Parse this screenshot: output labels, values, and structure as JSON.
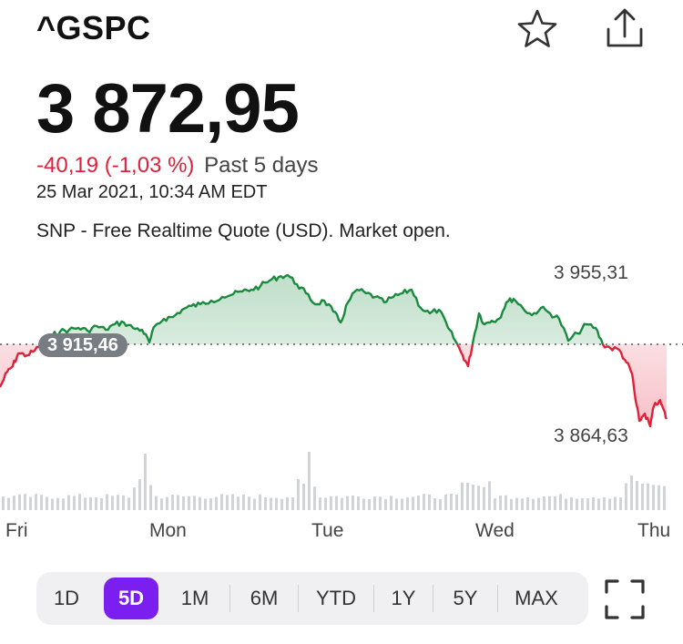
{
  "header": {
    "symbol": "^GSPC",
    "icons": {
      "watch": "star-icon",
      "share": "share-icon"
    }
  },
  "quote": {
    "price": "3 872,95",
    "change": "-40,19 (-1,03 %)",
    "period": "Past 5 days",
    "datetime": "25 Mar 2021, 10:34 AM EDT",
    "source": "SNP - Free Realtime Quote (USD). Market open."
  },
  "chart_data": {
    "type": "line",
    "high_label": "3 955,31",
    "low_label": "3 864,63",
    "previous_close_label": "3 915,46",
    "previous_close": 3915.46,
    "x_labels": [
      "Fri",
      "Mon",
      "Tue",
      "Wed",
      "Thu"
    ],
    "colors": {
      "up": "#1a8a3e",
      "down": "#e0203a",
      "volume": "#d2d3d6"
    }
  },
  "ranges": [
    {
      "label": "1D",
      "active": false
    },
    {
      "label": "5D",
      "active": true
    },
    {
      "label": "1M",
      "active": false
    },
    {
      "label": "6M",
      "active": false
    },
    {
      "label": "YTD",
      "active": false
    },
    {
      "label": "1Y",
      "active": false
    },
    {
      "label": "5Y",
      "active": false
    },
    {
      "label": "MAX",
      "active": false
    }
  ],
  "controls": {
    "expand_icon": "expand-icon"
  }
}
